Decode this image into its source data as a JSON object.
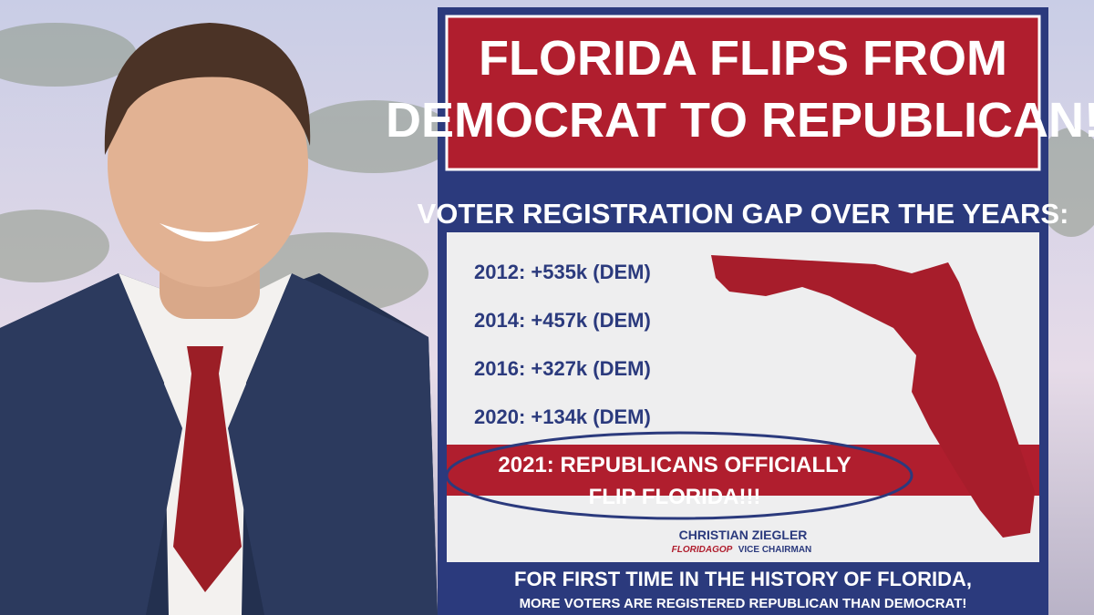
{
  "header": {
    "title_lines": [
      "FLORIDA FLIPS FROM",
      "DEMOCRAT TO REPUBLICAN!"
    ]
  },
  "subtitle": "VOTER REGISTRATION GAP OVER THE YEARS:",
  "items": [
    "2012: +535k (DEM)",
    "2014: +457k (DEM)",
    "2016: +327k (DEM)",
    "2020: +134k (DEM)"
  ],
  "highlight_lines": [
    "2021: REPUBLICANS OFFICIALLY",
    "FLIP FLORIDA!!!"
  ],
  "signature": {
    "name": "CHRISTIAN ZIEGLER",
    "org": "FLORIDAGOP",
    "role": "VICE CHAIRMAN"
  },
  "footer_lines": [
    "FOR FIRST TIME IN THE HISTORY OF FLORIDA,",
    "MORE VOTERS ARE REGISTERED REPUBLICAN THAN DEMOCRAT!"
  ]
}
